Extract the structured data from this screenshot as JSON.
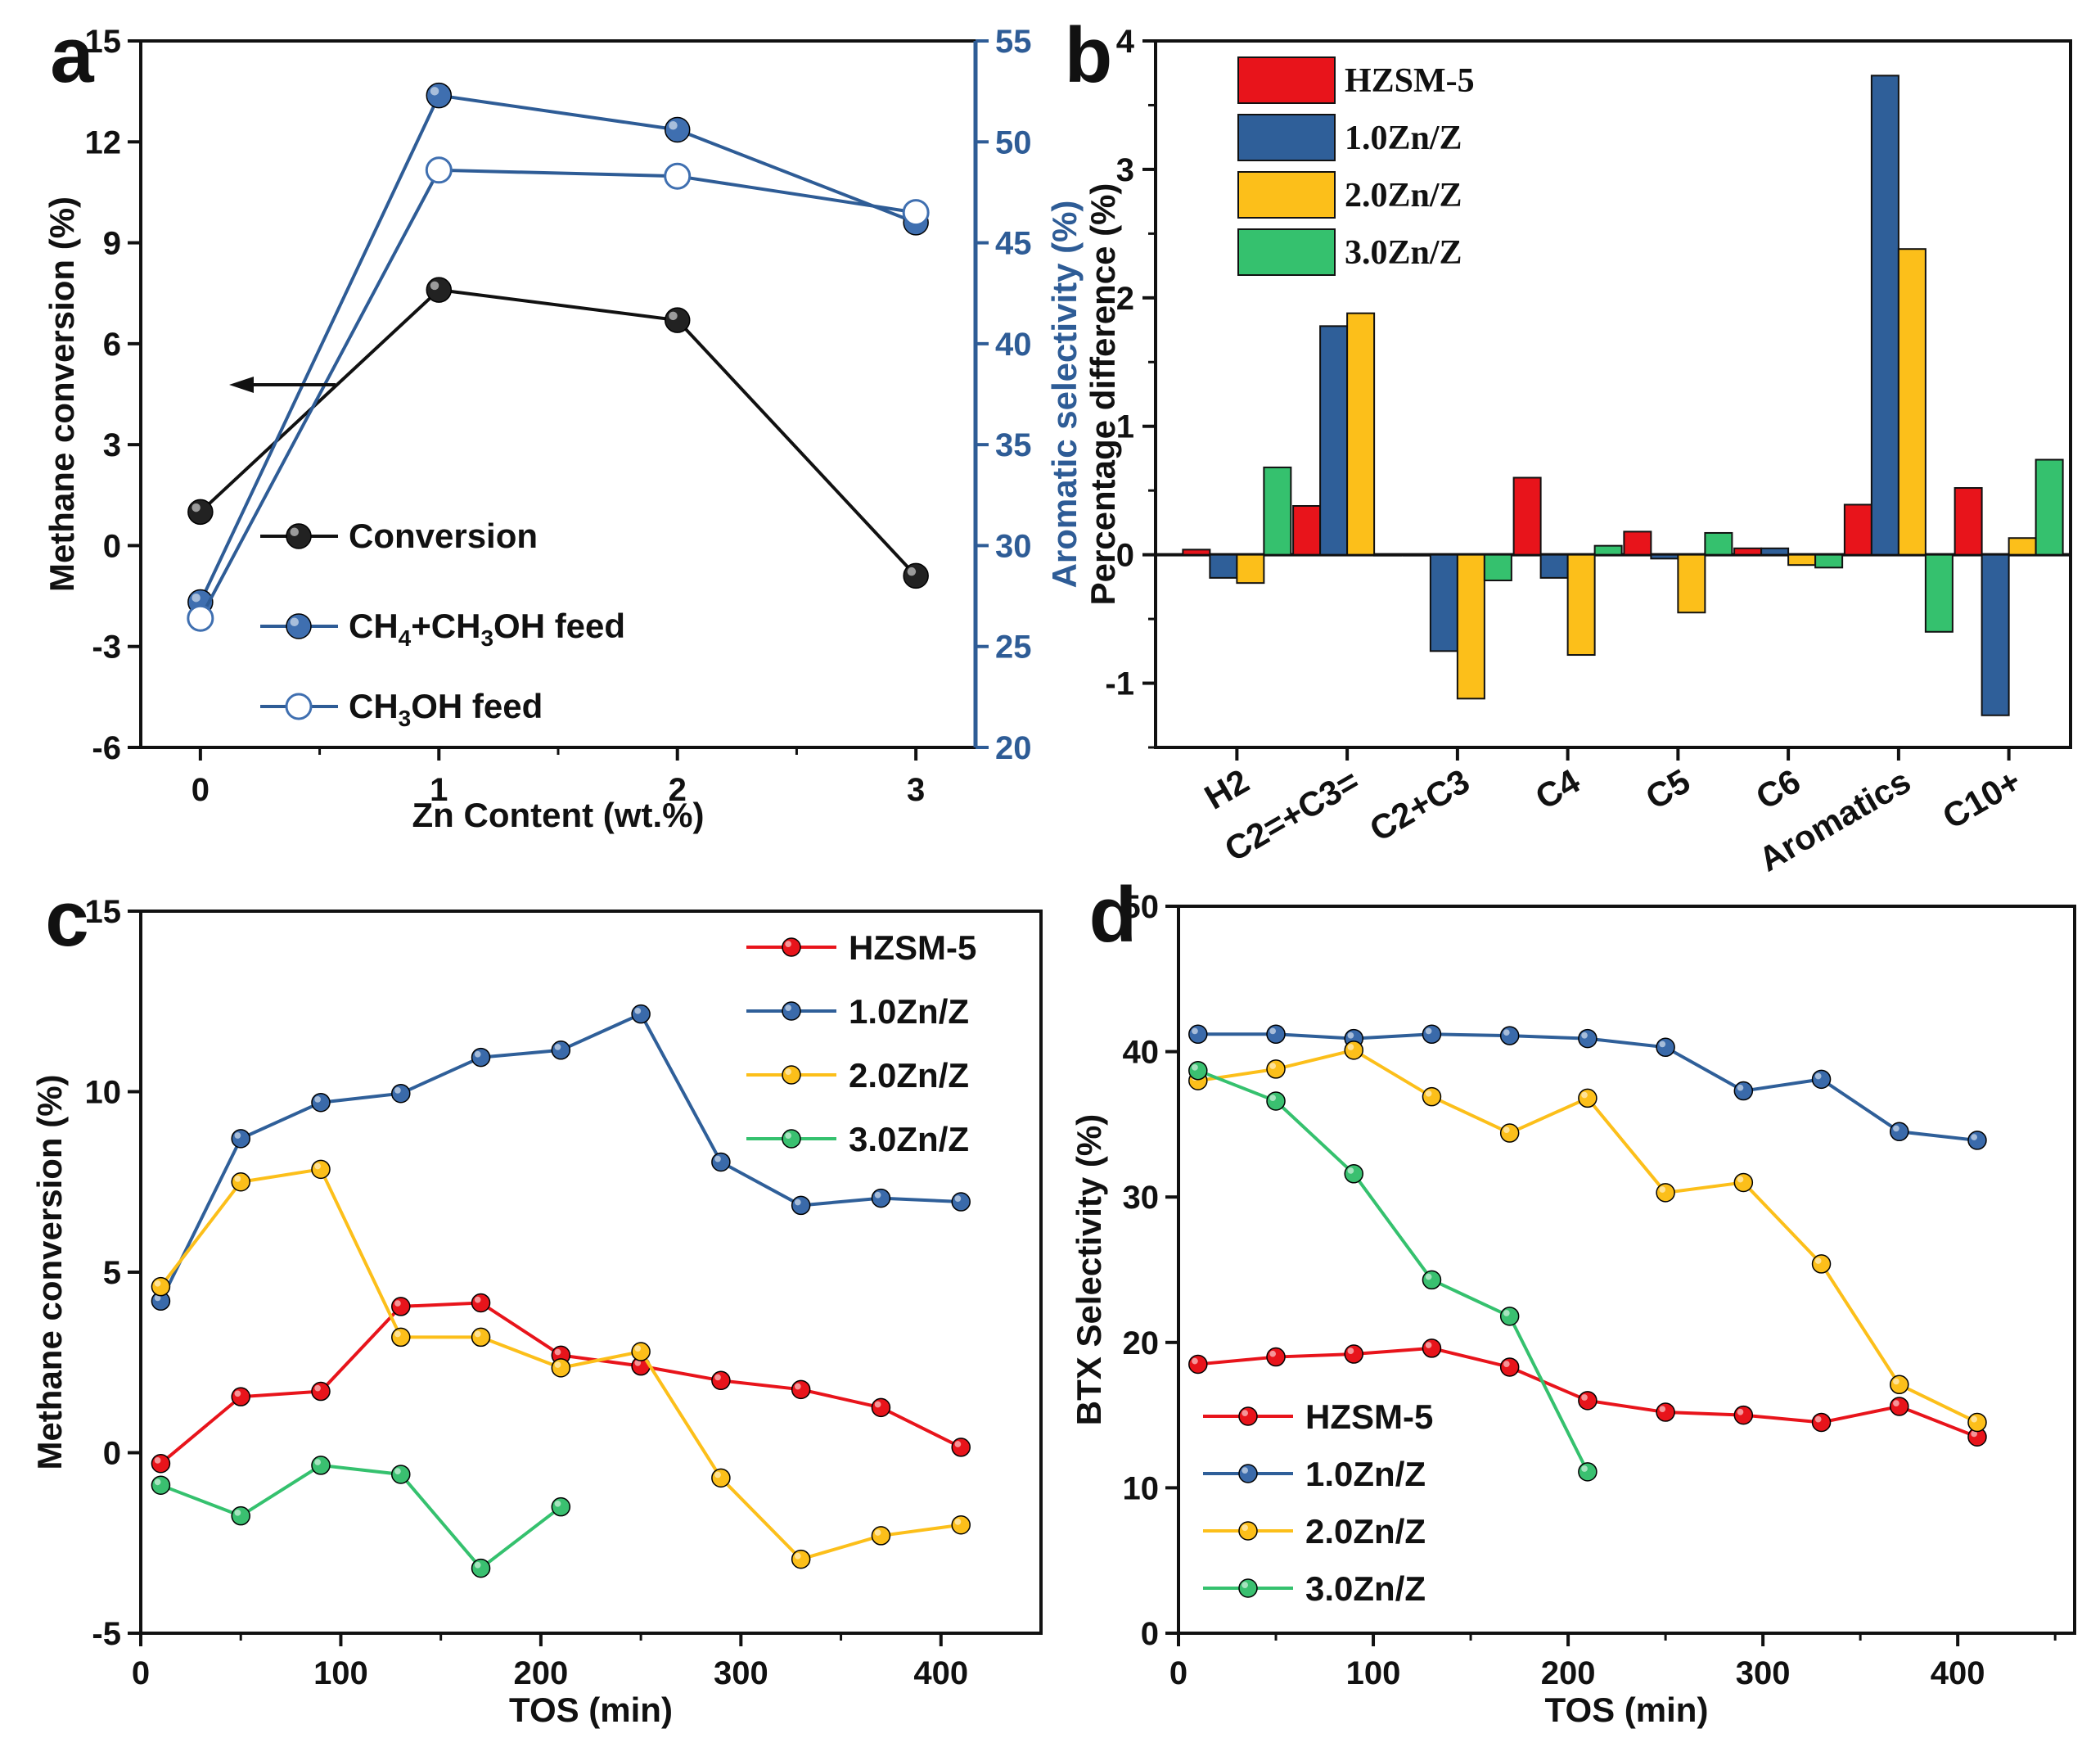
{
  "colors": {
    "red": "#e8141b",
    "blue": "#2f5f99",
    "yellow": "#fcbf1a",
    "green": "#35c16e",
    "black": "#111111",
    "axisblue": "#2e5c96"
  },
  "chart_data": [
    {
      "panel": "a",
      "type": "line",
      "xlabel": "Zn Content (wt.%)",
      "ylabel": "Methane conversion (%)",
      "y2label": "Aromatic selectivity (%)",
      "xticks": [
        "0",
        "1",
        "2",
        "3"
      ],
      "yticks": [
        "-6",
        "-3",
        "0",
        "3",
        "6",
        "9",
        "12",
        "15"
      ],
      "y2ticks": [
        "20",
        "25",
        "30",
        "35",
        "40",
        "45",
        "50",
        "55"
      ],
      "xlim": [
        -0.25,
        3.25
      ],
      "ylim": [
        -6,
        15
      ],
      "y2lim": [
        20,
        55
      ],
      "x": [
        0,
        1,
        2,
        3
      ],
      "series": [
        {
          "name": "Conversion",
          "axis": "left",
          "values": [
            1.0,
            7.6,
            6.7,
            -0.9
          ],
          "style": "filled"
        },
        {
          "name": "CH4+CH3OH feed",
          "axis": "right",
          "values": [
            27.2,
            52.3,
            50.6,
            46.0
          ],
          "style": "filled"
        },
        {
          "name": "CH3OH feed",
          "axis": "right",
          "values": [
            26.4,
            48.6,
            48.3,
            46.5
          ],
          "style": "open"
        }
      ],
      "legend": [
        {
          "label": "Conversion"
        },
        {
          "label_parts": [
            "CH",
            "4",
            "+CH",
            "3",
            "OH feed"
          ]
        },
        {
          "label_parts": [
            "CH",
            "3",
            "OH feed"
          ]
        }
      ],
      "annotation": "arrow pointing to left axis"
    },
    {
      "panel": "b",
      "type": "bar",
      "ylabel": "Percentage difference (%)",
      "categories": [
        "H2",
        "C2=+C3=",
        "C2+C3",
        "C4",
        "C5",
        "C6",
        "Aromatics",
        "C10+"
      ],
      "yticks": [
        "-1",
        "0",
        "1",
        "2",
        "3",
        "4"
      ],
      "ylim": [
        -1.5,
        4.0
      ],
      "series": [
        {
          "name": "HZSM-5",
          "values": [
            0.04,
            0.38,
            0.0,
            0.6,
            0.18,
            0.05,
            0.39,
            0.52
          ]
        },
        {
          "name": "1.0Zn/Z",
          "values": [
            -0.18,
            1.78,
            -0.75,
            -0.18,
            -0.03,
            0.05,
            3.73,
            -1.25
          ]
        },
        {
          "name": "2.0Zn/Z",
          "values": [
            -0.22,
            1.88,
            -1.12,
            -0.78,
            -0.45,
            -0.08,
            2.38,
            0.13
          ]
        },
        {
          "name": "3.0Zn/Z",
          "values": [
            0.68,
            0.0,
            -0.2,
            0.07,
            0.17,
            -0.1,
            -0.6,
            0.74
          ]
        }
      ]
    },
    {
      "panel": "c",
      "type": "line",
      "xlabel": "TOS (min)",
      "ylabel": "Methane conversion (%)",
      "xticks": [
        "0",
        "100",
        "200",
        "300",
        "400"
      ],
      "yticks": [
        "-5",
        "0",
        "5",
        "10",
        "15"
      ],
      "xlim": [
        0,
        450
      ],
      "ylim": [
        -5,
        15
      ],
      "series": [
        {
          "name": "HZSM-5",
          "x": [
            10,
            50,
            90,
            130,
            170,
            210,
            250,
            290,
            330,
            370,
            410
          ],
          "values": [
            -0.3,
            1.55,
            1.7,
            4.05,
            4.15,
            2.7,
            2.4,
            2.0,
            1.75,
            1.25,
            0.15
          ]
        },
        {
          "name": "1.0Zn/Z",
          "x": [
            10,
            50,
            90,
            130,
            170,
            210,
            250,
            290,
            330,
            370,
            410
          ],
          "values": [
            4.2,
            8.7,
            9.7,
            9.95,
            10.95,
            11.15,
            12.15,
            8.05,
            6.85,
            7.05,
            6.95
          ]
        },
        {
          "name": "2.0Zn/Z",
          "x": [
            10,
            50,
            90,
            130,
            170,
            210,
            250,
            290,
            330,
            370,
            410
          ],
          "values": [
            4.6,
            7.5,
            7.85,
            3.2,
            3.2,
            2.35,
            2.8,
            -0.7,
            -2.95,
            -2.3,
            -2.0
          ]
        },
        {
          "name": "3.0Zn/Z",
          "x": [
            10,
            50,
            90,
            130,
            170,
            210
          ],
          "values": [
            -0.9,
            -1.75,
            -0.35,
            -0.6,
            -3.2,
            -1.5
          ]
        }
      ]
    },
    {
      "panel": "d",
      "type": "line",
      "xlabel": "TOS (min)",
      "ylabel": "BTX Selectivity (%)",
      "xticks": [
        "0",
        "100",
        "200",
        "300",
        "400"
      ],
      "yticks": [
        "0",
        "10",
        "20",
        "30",
        "40",
        "50"
      ],
      "xlim": [
        0,
        460
      ],
      "ylim": [
        0,
        50
      ],
      "series": [
        {
          "name": "HZSM-5",
          "x": [
            10,
            50,
            90,
            130,
            170,
            210,
            250,
            290,
            330,
            370,
            410
          ],
          "values": [
            18.5,
            19.0,
            19.2,
            19.6,
            18.3,
            16.0,
            15.2,
            15.0,
            14.5,
            15.6,
            13.5
          ]
        },
        {
          "name": "1.0Zn/Z",
          "x": [
            10,
            50,
            90,
            130,
            170,
            210,
            250,
            290,
            330,
            370,
            410
          ],
          "values": [
            41.2,
            41.2,
            40.9,
            41.2,
            41.1,
            40.9,
            40.3,
            37.3,
            38.1,
            34.5,
            33.9
          ]
        },
        {
          "name": "2.0Zn/Z",
          "x": [
            10,
            50,
            90,
            130,
            170,
            210,
            250,
            290,
            330,
            370,
            410
          ],
          "values": [
            38.0,
            38.8,
            40.1,
            36.9,
            34.4,
            36.8,
            30.3,
            31.0,
            25.4,
            17.1,
            14.5
          ]
        },
        {
          "name": "3.0Zn/Z",
          "x": [
            10,
            50,
            90,
            130,
            170,
            210
          ],
          "values": [
            38.7,
            36.6,
            31.6,
            24.3,
            21.8,
            11.1
          ]
        }
      ]
    }
  ]
}
